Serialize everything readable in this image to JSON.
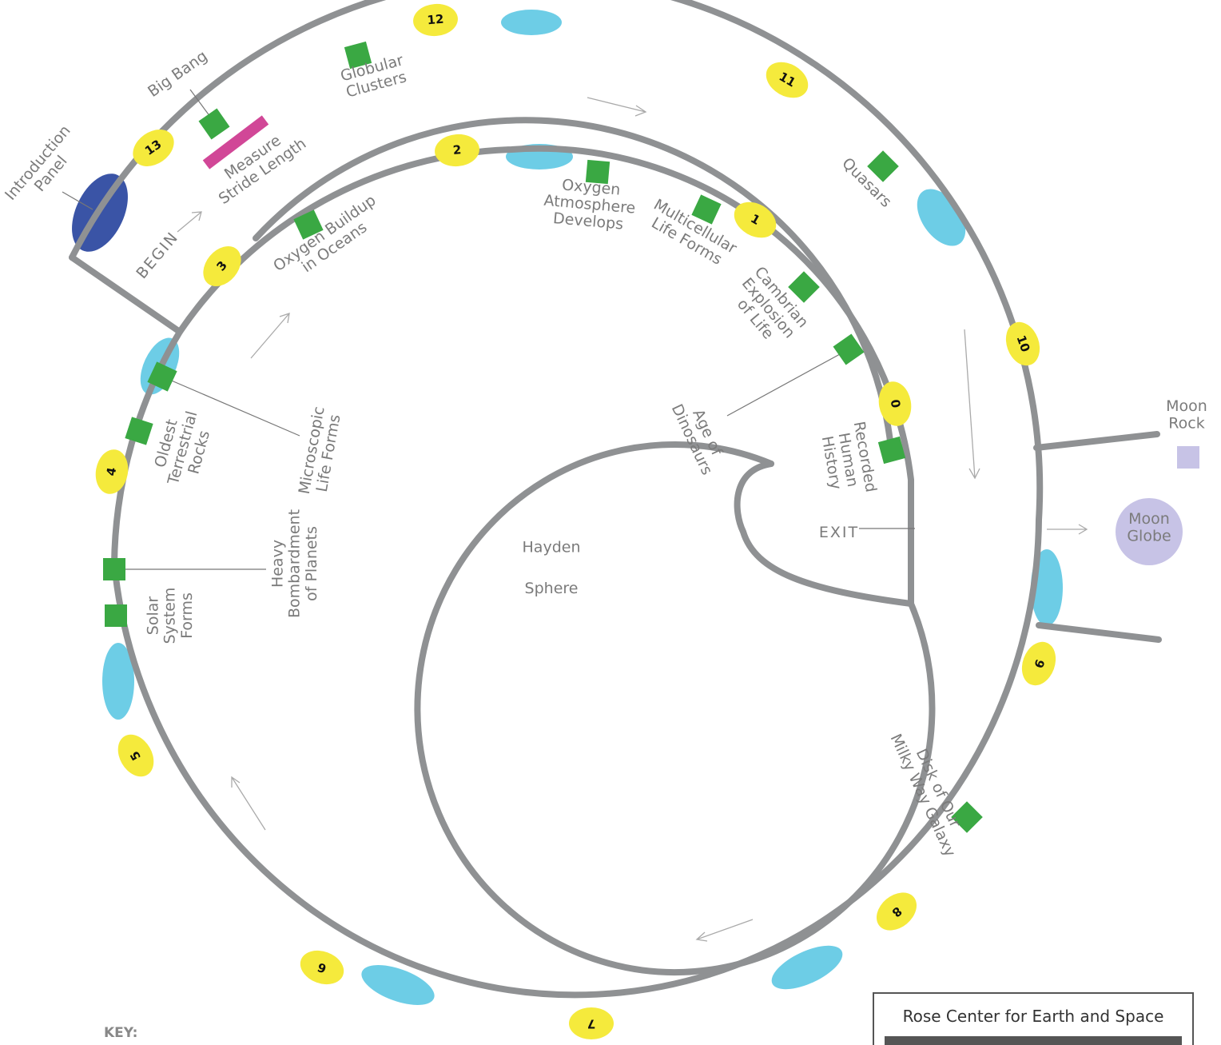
{
  "labels": {
    "big_bang": [
      "Big Bang"
    ],
    "globular_clusters": [
      "Globular",
      "Clusters"
    ],
    "introduction_panel": [
      "Introduction",
      "Panel"
    ],
    "measure_stride": [
      "Measure",
      "Stride Length"
    ],
    "begin": "BEGIN",
    "oxygen_oceans": [
      "Oxygen Buildup",
      "in Oceans"
    ],
    "oxygen_atmosphere": [
      "Oxygen",
      "Atmosphere",
      "Develops"
    ],
    "multicellular": [
      "Multicellular",
      "Life Forms"
    ],
    "quasars": [
      "Quasars"
    ],
    "cambrian": [
      "Cambrian",
      "Explosion",
      "of Life"
    ],
    "dinosaurs": [
      "Age of",
      "Dinosaurs"
    ],
    "human_history": [
      "Recorded",
      "Human",
      "History"
    ],
    "microscopic": [
      "Microscopic",
      "Life Forms"
    ],
    "oldest_rocks": [
      "Oldest",
      "Terrestrial",
      "Rocks"
    ],
    "bombardment": [
      "Heavy",
      "Bombardment",
      "of Planets"
    ],
    "solar_system": [
      "Solar",
      "System",
      "Forms"
    ],
    "hayden": [
      "Hayden",
      "Sphere"
    ],
    "exit": "EXIT",
    "moon_rock": [
      "Moon",
      "Rock"
    ],
    "moon_globe": [
      "Moon",
      "Globe"
    ],
    "milky_way": [
      "Disk of Our",
      "Milky Way Galaxy"
    ]
  },
  "stations": [
    "0",
    "1",
    "2",
    "3",
    "4",
    "5",
    "6",
    "7",
    "8",
    "9",
    "10",
    "11",
    "12",
    "13"
  ],
  "key": {
    "title": "KEY:"
  },
  "legend_box": {
    "title": "Rose Center for Earth and Space"
  }
}
